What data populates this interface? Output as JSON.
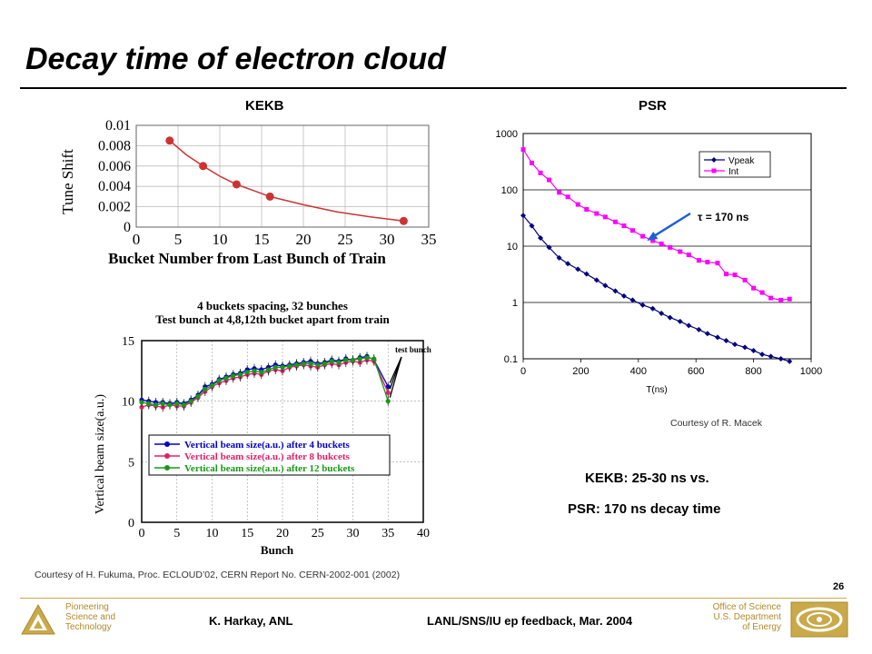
{
  "slide": {
    "title": "Decay time of electron cloud",
    "labels": {
      "left": "KEKB",
      "right": "PSR"
    },
    "credit_psr": "Courtesy of R. Macek",
    "credit_kekb": "Courtesy of H. Fukuma, Proc. ECLOUD’02, CERN Report No. CERN-2002-001  (2002)",
    "conclusion": [
      "KEKB: 25-30 ns vs.",
      "PSR: 170 ns decay time"
    ],
    "page_number": "26"
  },
  "footer": {
    "left_lines": [
      "Pioneering",
      "Science and",
      "Technology"
    ],
    "author": "K. Harkay, ANL",
    "event": "LANL/SNS/IU ep feedback, Mar. 2004",
    "right_lines": [
      "Office of Science",
      "U.S. Department",
      "of Energy"
    ]
  },
  "colors": {
    "tune_curve": "#cc3333",
    "vpeak": "#000080",
    "int": "#ff00ff",
    "arrow": "#1f5fd6",
    "s4": "#0000cc",
    "s8": "#e0206a",
    "s12": "#169a16",
    "footer_gold": "#c9a94a"
  },
  "chart_data": [
    {
      "type": "scatter",
      "title": "",
      "xlabel": "Bucket Number from Last Bunch of Train",
      "ylabel": "Tune Shift",
      "xlim": [
        0,
        35
      ],
      "ylim": [
        0,
        0.01
      ],
      "xticks": [
        "0",
        "5",
        "10",
        "15",
        "20",
        "25",
        "30",
        "35"
      ],
      "yticks": [
        "0",
        "0.002",
        "0.004",
        "0.006",
        "0.008",
        "0.01"
      ],
      "grid": true,
      "points": [
        {
          "x": 4,
          "y": 0.0085
        },
        {
          "x": 8,
          "y": 0.006
        },
        {
          "x": 12,
          "y": 0.0042
        },
        {
          "x": 16,
          "y": 0.003
        },
        {
          "x": 32,
          "y": 0.0006
        }
      ],
      "fit": [
        {
          "x": 4,
          "y": 0.0085
        },
        {
          "x": 6,
          "y": 0.0071
        },
        {
          "x": 8,
          "y": 0.006
        },
        {
          "x": 10,
          "y": 0.005
        },
        {
          "x": 12,
          "y": 0.0042
        },
        {
          "x": 14,
          "y": 0.0036
        },
        {
          "x": 16,
          "y": 0.003
        },
        {
          "x": 20,
          "y": 0.0022
        },
        {
          "x": 24,
          "y": 0.0015
        },
        {
          "x": 28,
          "y": 0.001
        },
        {
          "x": 32,
          "y": 0.0006
        }
      ]
    },
    {
      "type": "line",
      "title": "4 buckets spacing, 32 bunches\nTest bunch at 4,8,12th bucket apart from train",
      "title_lines": [
        "4 buckets spacing, 32 bunches",
        "Test bunch at 4,8,12th bucket apart from train"
      ],
      "xlabel": "Bunch",
      "ylabel": "Vertical beam size(a.u.)",
      "xlim": [
        0,
        40
      ],
      "ylim": [
        0,
        15
      ],
      "xticks": [
        "0",
        "5",
        "10",
        "15",
        "20",
        "25",
        "30",
        "35",
        "40"
      ],
      "yticks": [
        "0",
        "5",
        "10",
        "15"
      ],
      "grid": true,
      "annotation": "test bunch",
      "legend_position": "bottom-center",
      "x": [
        0,
        1,
        2,
        3,
        4,
        5,
        6,
        7,
        8,
        9,
        10,
        11,
        12,
        13,
        14,
        15,
        16,
        17,
        18,
        19,
        20,
        21,
        22,
        23,
        24,
        25,
        26,
        27,
        28,
        29,
        30,
        31,
        32,
        33,
        35
      ],
      "series": [
        {
          "name": "Vertical  beam  size(a.u.)  after  4  buckets",
          "values": [
            10.1,
            10.0,
            9.9,
            9.9,
            9.8,
            9.9,
            9.8,
            10.1,
            10.5,
            11.2,
            11.4,
            11.8,
            12.0,
            12.2,
            12.3,
            12.6,
            12.7,
            12.6,
            12.8,
            13.0,
            12.9,
            13.0,
            13.1,
            13.2,
            13.3,
            13.1,
            13.2,
            13.4,
            13.3,
            13.5,
            13.4,
            13.6,
            13.7,
            13.4,
            11.2
          ]
        },
        {
          "name": "Vertical  beam  size(a.u.)  after  8  bukcets",
          "values": [
            9.5,
            9.7,
            9.6,
            9.5,
            9.7,
            9.6,
            9.6,
            9.9,
            10.3,
            10.8,
            11.2,
            11.5,
            11.7,
            11.9,
            12.0,
            12.2,
            12.3,
            12.2,
            12.5,
            12.6,
            12.5,
            12.8,
            12.9,
            13.0,
            12.9,
            12.8,
            13.0,
            13.1,
            13.0,
            13.2,
            13.3,
            13.2,
            13.4,
            13.3,
            10.7
          ]
        },
        {
          "name": "Vertical  beam  size(a.u.)  after  12  buckets",
          "values": [
            9.9,
            9.8,
            9.7,
            9.8,
            9.7,
            9.8,
            9.7,
            10.0,
            10.4,
            11.0,
            11.3,
            11.7,
            11.9,
            12.1,
            12.2,
            12.4,
            12.5,
            12.4,
            12.6,
            12.8,
            12.8,
            12.9,
            13.0,
            13.1,
            13.1,
            13.0,
            13.1,
            13.3,
            13.2,
            13.4,
            13.4,
            13.5,
            13.6,
            13.5,
            10.0
          ]
        }
      ]
    },
    {
      "type": "line",
      "title": "",
      "xlabel": "T(ns)",
      "ylabel": "",
      "yscale": "log",
      "xlim": [
        0,
        1000
      ],
      "ylim": [
        0.1,
        1000
      ],
      "xticks": [
        "0",
        "200",
        "400",
        "600",
        "800",
        "1000"
      ],
      "yticks": [
        "0.1",
        "1",
        "10",
        "100",
        "1000"
      ],
      "grid": "horizontal",
      "legend_position": "top-right",
      "annotation": "τ = 170 ns",
      "x": [
        0,
        30,
        60,
        90,
        125,
        155,
        190,
        220,
        255,
        285,
        320,
        350,
        380,
        415,
        450,
        480,
        510,
        545,
        575,
        610,
        640,
        675,
        705,
        735,
        770,
        800,
        830,
        860,
        895,
        925
      ],
      "series": [
        {
          "name": "Vpeak",
          "values": [
            35,
            23,
            14,
            9.5,
            6.2,
            4.9,
            3.9,
            3.2,
            2.5,
            2.0,
            1.6,
            1.3,
            1.1,
            0.9,
            0.78,
            0.64,
            0.54,
            0.46,
            0.39,
            0.33,
            0.28,
            0.24,
            0.21,
            0.18,
            0.16,
            0.14,
            0.12,
            0.11,
            0.1,
            0.09
          ]
        },
        {
          "name": "Int",
          "values": [
            520,
            300,
            200,
            150,
            90,
            75,
            55,
            45,
            38,
            33,
            27,
            23,
            19,
            15,
            12.5,
            11,
            9.5,
            8,
            7,
            5.6,
            5.2,
            5.0,
            3.2,
            3.1,
            2.5,
            1.8,
            1.5,
            1.2,
            1.1,
            1.15
          ]
        }
      ]
    }
  ]
}
